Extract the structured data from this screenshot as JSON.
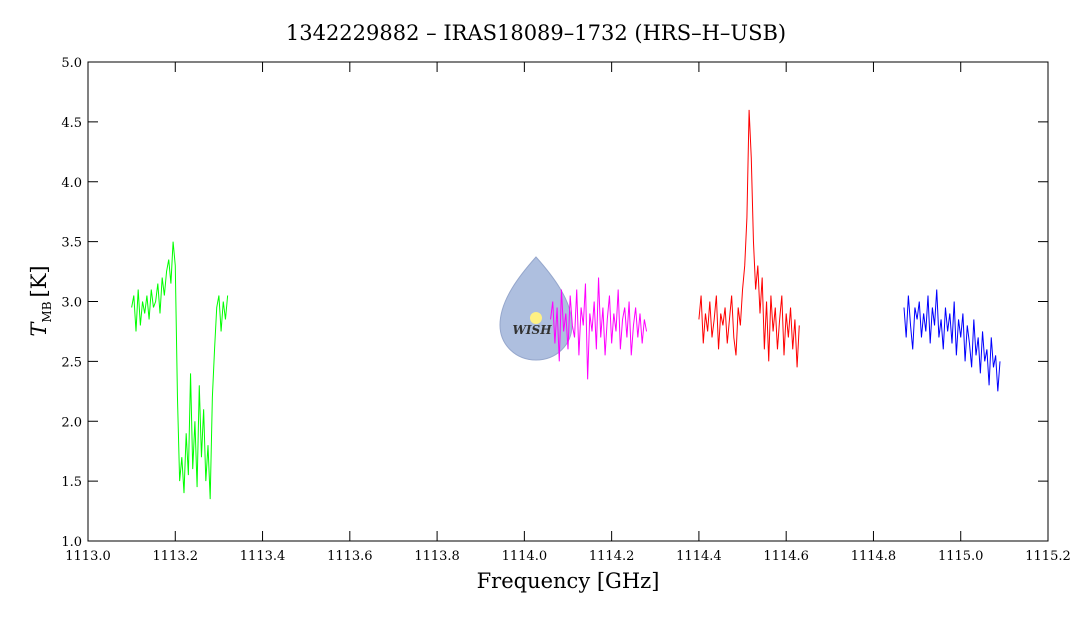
{
  "chart_data": {
    "type": "line",
    "title": "1342229882 – IRAS18089–1732 (HRS–H–USB)",
    "xlabel": "Frequency [GHz]",
    "ylabel": {
      "symbol": "T",
      "subscript": "MB",
      "unit": "[K]"
    },
    "logo_text": "WISH",
    "xlim": [
      1113.0,
      1115.2
    ],
    "ylim": [
      1.0,
      5.0
    ],
    "xticks": [
      {
        "value": 1113.0,
        "label": "1113.0"
      },
      1113.2,
      1113.4,
      1113.6,
      1113.8,
      {
        "value": 1114.0,
        "label": "1114.0"
      },
      1114.2,
      1114.4,
      1114.6,
      1114.8,
      {
        "value": 1115.0,
        "label": "1115.0"
      },
      1115.2
    ],
    "yticks": [
      {
        "value": 1.0,
        "label": "1.0"
      },
      1.5,
      {
        "value": 2.0,
        "label": "2.0"
      },
      2.5,
      {
        "value": 3.0,
        "label": "3.0"
      },
      3.5,
      {
        "value": 4.0,
        "label": "4.0"
      },
      4.5,
      {
        "value": 5.0,
        "label": "5.0"
      }
    ],
    "series": [
      {
        "color": "#00ff00",
        "x": [
          1113.1,
          1113.105,
          1113.11,
          1113.115,
          1113.12,
          1113.125,
          1113.13,
          1113.135,
          1113.14,
          1113.145,
          1113.15,
          1113.155,
          1113.16,
          1113.165,
          1113.17,
          1113.175,
          1113.18,
          1113.185,
          1113.19,
          1113.195,
          1113.2,
          1113.205,
          1113.21,
          1113.215,
          1113.22,
          1113.225,
          1113.23,
          1113.235,
          1113.24,
          1113.245,
          1113.25,
          1113.255,
          1113.26,
          1113.265,
          1113.27,
          1113.275,
          1113.28,
          1113.285,
          1113.29,
          1113.295,
          1113.3,
          1113.305,
          1113.31,
          1113.315,
          1113.32
        ],
        "values": [
          2.95,
          3.05,
          2.75,
          3.1,
          2.8,
          3.0,
          2.9,
          3.05,
          2.85,
          3.1,
          2.95,
          3.0,
          3.15,
          2.9,
          3.2,
          3.05,
          3.25,
          3.35,
          3.15,
          3.5,
          3.3,
          2.2,
          1.5,
          1.7,
          1.4,
          1.9,
          1.55,
          2.4,
          1.6,
          2.0,
          1.45,
          2.3,
          1.7,
          2.1,
          1.5,
          1.8,
          1.35,
          2.2,
          2.6,
          2.95,
          3.05,
          2.75,
          3.0,
          2.85,
          3.05
        ]
      },
      {
        "color": "#ff00ff",
        "x": [
          1114.06,
          1114.065,
          1114.07,
          1114.075,
          1114.08,
          1114.085,
          1114.09,
          1114.095,
          1114.1,
          1114.105,
          1114.11,
          1114.115,
          1114.12,
          1114.125,
          1114.13,
          1114.135,
          1114.14,
          1114.145,
          1114.15,
          1114.155,
          1114.16,
          1114.165,
          1114.17,
          1114.175,
          1114.18,
          1114.185,
          1114.19,
          1114.195,
          1114.2,
          1114.205,
          1114.21,
          1114.215,
          1114.22,
          1114.225,
          1114.23,
          1114.235,
          1114.24,
          1114.245,
          1114.25,
          1114.255,
          1114.26,
          1114.265,
          1114.27,
          1114.275,
          1114.28
        ],
        "values": [
          2.85,
          3.0,
          2.65,
          2.95,
          2.5,
          3.1,
          2.75,
          2.9,
          2.6,
          3.05,
          2.8,
          2.7,
          3.1,
          2.55,
          2.95,
          2.8,
          3.15,
          2.35,
          2.9,
          2.75,
          3.0,
          2.6,
          3.2,
          2.7,
          2.95,
          2.55,
          2.85,
          3.05,
          2.65,
          2.9,
          2.75,
          3.1,
          2.6,
          2.85,
          2.95,
          2.7,
          3.0,
          2.55,
          2.8,
          2.95,
          2.7,
          2.9,
          2.65,
          2.85,
          2.75
        ]
      },
      {
        "color": "#ff0000",
        "x": [
          1114.4,
          1114.405,
          1114.41,
          1114.415,
          1114.42,
          1114.425,
          1114.43,
          1114.435,
          1114.44,
          1114.445,
          1114.45,
          1114.455,
          1114.46,
          1114.465,
          1114.47,
          1114.475,
          1114.48,
          1114.485,
          1114.49,
          1114.495,
          1114.5,
          1114.505,
          1114.51,
          1114.515,
          1114.52,
          1114.525,
          1114.53,
          1114.535,
          1114.54,
          1114.545,
          1114.55,
          1114.555,
          1114.56,
          1114.565,
          1114.57,
          1114.575,
          1114.58,
          1114.585,
          1114.59,
          1114.595,
          1114.6,
          1114.605,
          1114.61,
          1114.615,
          1114.62,
          1114.625,
          1114.63
        ],
        "values": [
          2.85,
          3.05,
          2.65,
          2.9,
          2.75,
          3.0,
          2.7,
          2.85,
          3.05,
          2.6,
          2.9,
          2.8,
          2.95,
          2.65,
          2.85,
          3.05,
          2.7,
          2.55,
          2.95,
          2.8,
          3.1,
          3.3,
          3.7,
          4.6,
          4.2,
          3.5,
          3.1,
          3.3,
          2.9,
          3.2,
          2.6,
          3.0,
          2.5,
          3.05,
          2.75,
          2.95,
          2.6,
          2.85,
          3.05,
          2.55,
          2.9,
          2.7,
          2.95,
          2.6,
          2.85,
          2.45,
          2.8
        ]
      },
      {
        "color": "#0000ff",
        "x": [
          1114.87,
          1114.875,
          1114.88,
          1114.885,
          1114.89,
          1114.895,
          1114.9,
          1114.905,
          1114.91,
          1114.915,
          1114.92,
          1114.925,
          1114.93,
          1114.935,
          1114.94,
          1114.945,
          1114.95,
          1114.955,
          1114.96,
          1114.965,
          1114.97,
          1114.975,
          1114.98,
          1114.985,
          1114.99,
          1114.995,
          1115.0,
          1115.005,
          1115.01,
          1115.015,
          1115.02,
          1115.025,
          1115.03,
          1115.035,
          1115.04,
          1115.045,
          1115.05,
          1115.055,
          1115.06,
          1115.065,
          1115.07,
          1115.075,
          1115.08,
          1115.085,
          1115.09
        ],
        "values": [
          2.95,
          2.7,
          3.05,
          2.8,
          2.6,
          2.95,
          2.85,
          3.0,
          2.7,
          2.9,
          2.75,
          3.05,
          2.65,
          2.95,
          2.8,
          3.1,
          2.7,
          2.85,
          2.6,
          2.95,
          2.75,
          2.9,
          2.65,
          3.0,
          2.55,
          2.85,
          2.7,
          2.9,
          2.5,
          2.8,
          2.65,
          2.45,
          2.85,
          2.55,
          2.7,
          2.4,
          2.75,
          2.5,
          2.6,
          2.3,
          2.7,
          2.45,
          2.55,
          2.25,
          2.5
        ]
      }
    ]
  }
}
